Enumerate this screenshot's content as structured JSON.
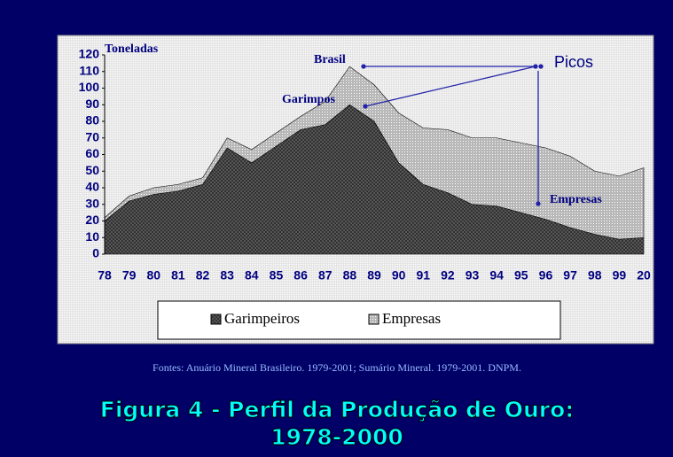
{
  "chart_data": {
    "type": "stacked_area",
    "title": "Figura 4 - Perfil da Produção de Ouro:",
    "subtitle": "1978-2000",
    "source": "Fontes: Anuário Mineral Brasileiro. 1979-2001; Sumário Mineral. 1979-2001. DNPM.",
    "y_label": "Toneladas",
    "annotations": [
      "Brasil",
      "Picos",
      "Garimpos",
      "Empresas"
    ],
    "categories": [
      "78",
      "79",
      "80",
      "81",
      "82",
      "83",
      "84",
      "85",
      "86",
      "87",
      "88",
      "89",
      "90",
      "91",
      "92",
      "93",
      "94",
      "95",
      "96",
      "97",
      "98",
      "99",
      "20"
    ],
    "series": [
      {
        "name": "Garimpeiros",
        "color": "#2a2a2a",
        "values": [
          20,
          32,
          36,
          38,
          42,
          64,
          55,
          65,
          75,
          78,
          90,
          80,
          55,
          42,
          37,
          30,
          29,
          25,
          21,
          16,
          12,
          9,
          10
        ]
      },
      {
        "name": "Empresas",
        "color": "#b8b8b8",
        "values": [
          2,
          3,
          4,
          4,
          4,
          6,
          8,
          8,
          8,
          14,
          23,
          22,
          30,
          34,
          38,
          40,
          41,
          42,
          43,
          43,
          38,
          38,
          42
        ]
      }
    ],
    "ylim": [
      0,
      120
    ],
    "yticks": [
      0,
      10,
      20,
      30,
      40,
      50,
      60,
      70,
      80,
      90,
      100,
      110,
      120
    ]
  }
}
